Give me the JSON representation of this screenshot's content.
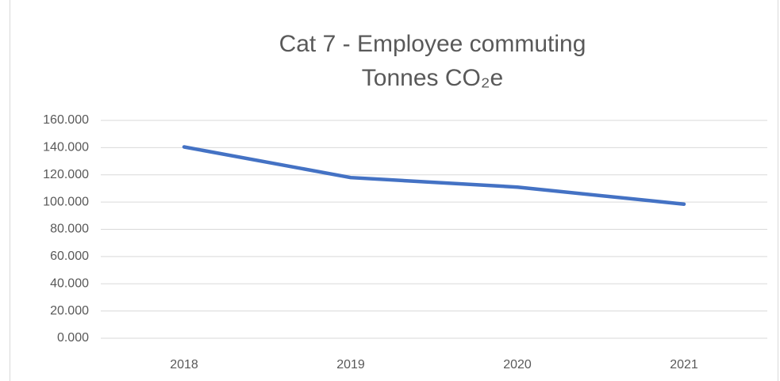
{
  "chart_data": {
    "type": "line",
    "title": "Cat 7 - Employee commuting",
    "subtitle": "Tonnes CO₂e",
    "categories": [
      "2018",
      "2019",
      "2020",
      "2021"
    ],
    "series": [
      {
        "name": "Tonnes CO₂e",
        "color": "#4472c4",
        "values": [
          140500,
          118000,
          111000,
          98500
        ]
      }
    ],
    "ylim": [
      0,
      160000
    ],
    "yticks": [
      {
        "value": 0,
        "label": "0.000"
      },
      {
        "value": 20000,
        "label": "20.000"
      },
      {
        "value": 40000,
        "label": "40.000"
      },
      {
        "value": 60000,
        "label": "60.000"
      },
      {
        "value": 80000,
        "label": "80.000"
      },
      {
        "value": 100000,
        "label": "100.000"
      },
      {
        "value": 120000,
        "label": "120.000"
      },
      {
        "value": 140000,
        "label": "140.000"
      },
      {
        "value": 160000,
        "label": "160.000"
      }
    ],
    "grid": true,
    "legend": false
  }
}
